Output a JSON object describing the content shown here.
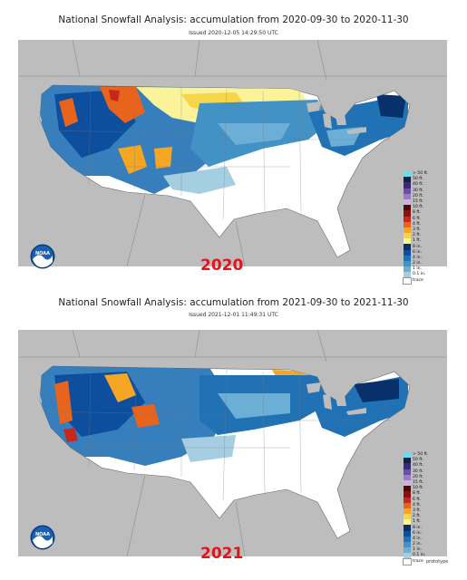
{
  "panels": [
    {
      "title": "National Snowfall Analysis: accumulation from 2020-09-30 to 2020-11-30",
      "issued": "Issued 2020-12-05 14:29:50 UTC",
      "year_label": "2020",
      "logo_text": "NOAA",
      "prototype_label": ""
    },
    {
      "title": "National Snowfall Analysis: accumulation from 2021-09-30 to 2021-11-30",
      "issued": "Issued 2021-12-01 11:49:31 UTC",
      "year_label": "2021",
      "logo_text": "NOAA",
      "prototype_label": "prototype"
    }
  ],
  "legend": [
    {
      "label": "> 50 ft.",
      "color": "#5ce1f5"
    },
    {
      "label": "50 ft.",
      "color": "#1c1c46"
    },
    {
      "label": "40 ft.",
      "color": "#3b2a7a"
    },
    {
      "label": "30 ft.",
      "color": "#6a4fa8"
    },
    {
      "label": "20 ft.",
      "color": "#9b7bc8"
    },
    {
      "label": "15 ft.",
      "color": "#c7b4e3"
    },
    {
      "label": "10 ft.",
      "color": "#4a0a0a"
    },
    {
      "label": "8 ft.",
      "color": "#8b1010"
    },
    {
      "label": "6 ft.",
      "color": "#c8281c"
    },
    {
      "label": "4 ft.",
      "color": "#e8641c"
    },
    {
      "label": "3 ft.",
      "color": "#f5a623"
    },
    {
      "label": "2 ft.",
      "color": "#f7d54a"
    },
    {
      "label": "1 ft.",
      "color": "#faf39a"
    },
    {
      "label": "8 in.",
      "color": "#08306b"
    },
    {
      "label": "6 in.",
      "color": "#0d4f9e"
    },
    {
      "label": "4 in.",
      "color": "#2171b5"
    },
    {
      "label": "2 in.",
      "color": "#4292c6"
    },
    {
      "label": "1 in.",
      "color": "#6baed6"
    },
    {
      "label": "0.1 in.",
      "color": "#a6cee3"
    },
    {
      "label": "trace",
      "color": "#ffffff"
    }
  ]
}
